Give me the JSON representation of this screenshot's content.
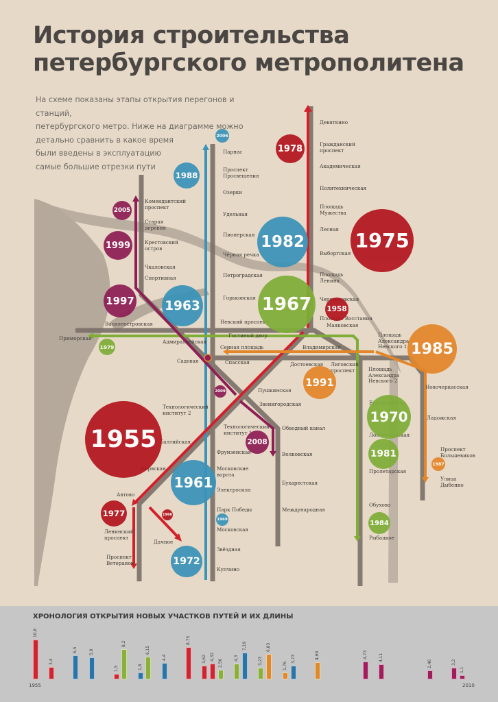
{
  "title": "История строительства\nпетербургского метрополитена",
  "intro": "На схеме показаны этапы открытия перегонов и станций,\nпетербургского метро. Ниже на диаграмме можно\nдетально сравнить в какое время\nбыли введены в эксплуатацию\nсамые большие отрезки пути",
  "colors": {
    "red": "#c41e2a",
    "red_circle": "#b3161f",
    "blue": "#3a93b8",
    "green": "#7fae38",
    "orange": "#e3862a",
    "magenta": "#8e1e55",
    "gray": "#7a7068",
    "background": "#e6d9c7"
  },
  "stations": [
    "Парнас",
    "Проспект\nПросвещения",
    "Озерки",
    "Удельная",
    "Пионерская",
    "Чёрная речка",
    "Петроградская",
    "Горьковская",
    "Невский проспект",
    "Гостиный двор",
    "Сенная площадь",
    "Спасская",
    "Садовая",
    "Адмиралтейская",
    "Василеостровская",
    "Приморская",
    "Комендантский\nпроспект",
    "Старая\nдеревня",
    "Крестовский\nостров",
    "Чкаловская",
    "Спортивная",
    "Девяткино",
    "Гражданский\nпроспект",
    "Академическая",
    "Политехническая",
    "Площадь\nМужества",
    "Лесная",
    "Выборгская",
    "Площадь\nЛенина",
    "Чернышевская",
    "Площадь Восстания",
    "Маяковская",
    "Площадь\nАлександра\nНевского 1",
    "Владимирская",
    "Достоевская",
    "Лиговский\nпроспект",
    "Площадь\nАлександра\nНевского 2",
    "Новочеркасская",
    "Ладожская",
    "Проспект\nБольшевиков",
    "Улица\nДыбенко",
    "Елизаровская",
    "Ломоносовская",
    "Пролетарская",
    "Обухово",
    "Рыбацкое",
    "Пушкинская",
    "Звенигородская",
    "Обводный канал",
    "Волковская",
    "Бухарестская",
    "Международная",
    "Технологический\nинститут 2",
    "Технологический\nинститут 1",
    "Балтийская",
    "Фрунзенская",
    "Московские\nворота",
    "Нарвская",
    "Электросила",
    "Автово",
    "Парк Победы",
    "Московская",
    "Ленинский\nпроспект",
    "Дачное",
    "Звёздная",
    "Проспект\nВетеранов",
    "Купчино"
  ],
  "years": [
    {
      "year": "2006",
      "line": "blue"
    },
    {
      "year": "1988",
      "line": "blue"
    },
    {
      "year": "1978",
      "line": "red"
    },
    {
      "year": "2005",
      "line": "magenta"
    },
    {
      "year": "1999",
      "line": "magenta"
    },
    {
      "year": "1982",
      "line": "blue"
    },
    {
      "year": "1975",
      "line": "red"
    },
    {
      "year": "1997",
      "line": "magenta"
    },
    {
      "year": "1963",
      "line": "blue"
    },
    {
      "year": "1967",
      "line": "green"
    },
    {
      "year": "1958",
      "line": "red"
    },
    {
      "year": "1979",
      "line": "green"
    },
    {
      "year": "1985",
      "line": "orange"
    },
    {
      "year": "1991",
      "line": "orange"
    },
    {
      "year": "1970",
      "line": "green"
    },
    {
      "year": "2009",
      "line": "magenta"
    },
    {
      "year": "1955",
      "line": "red"
    },
    {
      "year": "2008",
      "line": "magenta"
    },
    {
      "year": "1981",
      "line": "green"
    },
    {
      "year": "1987",
      "line": "orange"
    },
    {
      "year": "1961",
      "line": "blue"
    },
    {
      "year": "1977",
      "line": "red"
    },
    {
      "year": "1966",
      "line": "red"
    },
    {
      "year": "1969",
      "line": "blue"
    },
    {
      "year": "1984",
      "line": "green"
    },
    {
      "year": "1972",
      "line": "blue"
    }
  ],
  "chart_data": {
    "type": "bar",
    "title": "ХРОНОЛОГИЯ ОТКРЫТИЯ НОВЫХ УЧАСТКОВ ПУТЕЙ И ИХ ДЛИНЫ",
    "x_start_label": "1955",
    "x_end_label": "2010",
    "bars": [
      {
        "label": "10,8",
        "value": 10.8,
        "line": "red"
      },
      {
        "label": "3,4",
        "value": 3.4,
        "line": "red"
      },
      {
        "label": "6,5",
        "value": 6.5,
        "line": "blue"
      },
      {
        "label": "5,9",
        "value": 5.9,
        "line": "blue"
      },
      {
        "label": "1,5",
        "value": 1.5,
        "line": "red"
      },
      {
        "label": "8,2",
        "value": 8.2,
        "line": "green"
      },
      {
        "label": "1,8",
        "value": 1.8,
        "line": "blue"
      },
      {
        "label": "6,15",
        "value": 6.15,
        "line": "green"
      },
      {
        "label": "4,4",
        "value": 4.4,
        "line": "blue"
      },
      {
        "label": "8,75",
        "value": 8.75,
        "line": "red"
      },
      {
        "label": "3,62",
        "value": 3.62,
        "line": "red"
      },
      {
        "label": "4,32",
        "value": 4.32,
        "line": "red"
      },
      {
        "label": "2,56",
        "value": 2.56,
        "line": "green"
      },
      {
        "label": "4,3",
        "value": 4.3,
        "line": "green"
      },
      {
        "label": "7,19",
        "value": 7.19,
        "line": "blue"
      },
      {
        "label": "3,23",
        "value": 3.23,
        "line": "green"
      },
      {
        "label": "6,83",
        "value": 6.83,
        "line": "orange"
      },
      {
        "label": "1,76",
        "value": 1.76,
        "line": "orange"
      },
      {
        "label": "3,73",
        "value": 3.73,
        "line": "blue"
      },
      {
        "label": "4,69",
        "value": 4.69,
        "line": "orange"
      },
      {
        "label": "4,73",
        "value": 4.73,
        "line": "magenta"
      },
      {
        "label": "4,11",
        "value": 4.11,
        "line": "magenta"
      },
      {
        "label": "2,46",
        "value": 2.46,
        "line": "magenta"
      },
      {
        "label": "3,2",
        "value": 3.2,
        "line": "magenta"
      },
      {
        "label": "1,1",
        "value": 1.1,
        "line": "magenta"
      }
    ]
  }
}
